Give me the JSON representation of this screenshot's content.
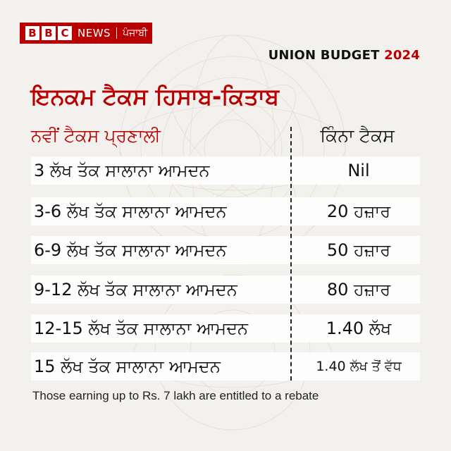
{
  "brand": {
    "boxes": [
      "B",
      "B",
      "C"
    ],
    "news": "NEWS",
    "language": "ਪੰਜਾਬੀ",
    "color": "#b80000"
  },
  "header": {
    "budget_label": "UNION BUDGET",
    "budget_year": "2024"
  },
  "title": "ਇਨਕਮ ਟੈਕਸ ਹਿਸਾਬ-ਕਿਤਾਬ",
  "table": {
    "left_header": "ਨਵੀਂ ਟੈਕਸ ਪ੍ਰਣਾਲੀ",
    "right_header": "ਕਿੰਨਾ ਟੈਕਸ",
    "rows": [
      {
        "income": "3 ਲੱਖ ਤੱਕ ਸਾਲਾਨਾ ਆਮਦਨ",
        "tax": "Nil"
      },
      {
        "income": "3-6 ਲੱਖ ਤੱਕ ਸਾਲਾਨਾ ਆਮਦਨ",
        "tax": "20 ਹਜ਼ਾਰ"
      },
      {
        "income": "6-9 ਲੱਖ ਤੱਕ ਸਾਲਾਨਾ ਆਮਦਨ",
        "tax": "50 ਹਜ਼ਾਰ"
      },
      {
        "income": "9-12 ਲੱਖ ਤੱਕ ਸਾਲਾਨਾ ਆਮਦਨ",
        "tax": "80 ਹਜ਼ਾਰ"
      },
      {
        "income": "12-15 ਲੱਖ ਤੱਕ ਸਾਲਾਨਾ ਆਮਦਨ",
        "tax": "1.40 ਲੱਖ"
      },
      {
        "income": "15 ਲੱਖ ਤੱਕ ਸਾਲਾਨਾ ਆਮਦਨ",
        "tax": "1.40 ਲੱਖ ਤੋਂ ਵੱਧ"
      }
    ]
  },
  "footnote": "Those earning up to Rs. 7 lakh are entitled to a rebate",
  "colors": {
    "accent": "#b80000",
    "background": "#f3f1ee",
    "row": "#ffffff"
  }
}
